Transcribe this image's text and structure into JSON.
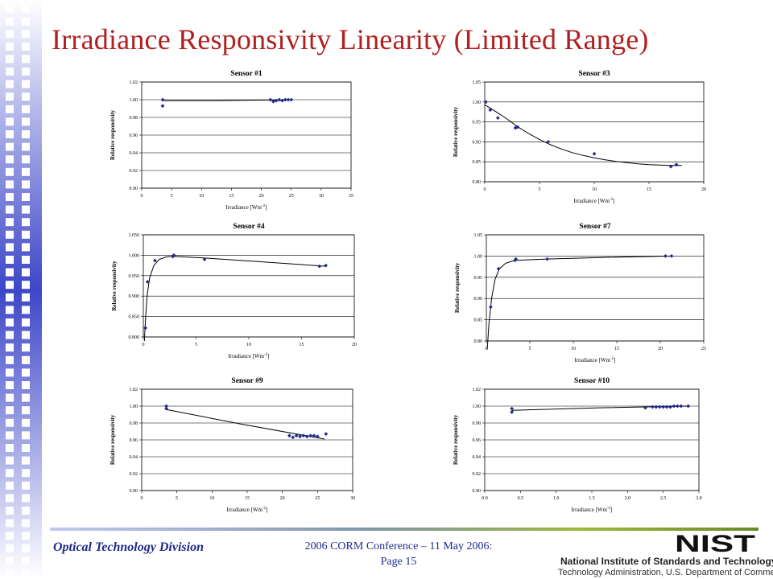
{
  "slide": {
    "title": "Irradiance Responsivity Linearity (Limited Range)"
  },
  "footer": {
    "division": "Optical Technology Division",
    "conference": "2006 CORM Conference – 11 May 2006:",
    "page": "Page 15",
    "org_name": "National Institute of Standards and Technology",
    "org_sub": "Technology Administration, U.S. Department of Commerce",
    "logo_text": "NIST"
  },
  "colors": {
    "title": "#b02020",
    "footer_text": "#1f2a8a",
    "sidebar_blue": "#3d46c8",
    "marker": "#1f2a8a"
  },
  "chart_data": [
    {
      "type": "scatter",
      "title": "Sensor #1",
      "xlabel": "Irradiance [Wm",
      "xlabel_sup": "-2",
      "xlabel_end": "]",
      "ylabel": "Relative responsivity",
      "xlim": [
        0,
        35
      ],
      "ylim": [
        0.9,
        1.02
      ],
      "xticks": [
        0,
        5,
        10,
        15,
        20,
        25,
        30,
        35
      ],
      "xtick_labels": [
        "0",
        "5",
        "10",
        "15",
        "20",
        "25",
        "30",
        "35"
      ],
      "yticks": [
        0.9,
        0.92,
        0.94,
        0.96,
        0.98,
        1.0,
        1.02
      ],
      "ytick_labels": [
        "0.90",
        "0.92",
        "0.94",
        "0.96",
        "0.98",
        "1.00",
        "1.02"
      ],
      "grid": true,
      "points": [
        [
          3.5,
          0.993
        ],
        [
          3.5,
          1.0
        ],
        [
          21.5,
          1.0
        ],
        [
          22.0,
          0.998
        ],
        [
          22.5,
          0.999
        ],
        [
          23.0,
          1.0
        ],
        [
          23.5,
          0.999
        ],
        [
          24.0,
          1.0
        ],
        [
          24.5,
          1.0
        ],
        [
          25.0,
          1.0
        ]
      ],
      "fit": [
        [
          3.5,
          0.999
        ],
        [
          13.0,
          0.999
        ],
        [
          25.0,
          1.0
        ]
      ]
    },
    {
      "type": "scatter",
      "title": "Sensor #3",
      "xlabel": "Irradiance [Wm",
      "xlabel_sup": "-2",
      "xlabel_end": "]",
      "ylabel": "Relative responsivity",
      "xlim": [
        0,
        20
      ],
      "ylim": [
        0.8,
        1.05
      ],
      "xticks": [
        0,
        5,
        10,
        15,
        20
      ],
      "xtick_labels": [
        "0",
        "5",
        "10",
        "15",
        "20"
      ],
      "yticks": [
        0.8,
        0.85,
        0.9,
        0.95,
        1.0,
        1.05
      ],
      "ytick_labels": [
        "0.80",
        "0.85",
        "0.90",
        "0.95",
        "1.00",
        "1.05"
      ],
      "grid": true,
      "points": [
        [
          0.1,
          1.0
        ],
        [
          0.5,
          0.98
        ],
        [
          1.2,
          0.96
        ],
        [
          2.8,
          0.935
        ],
        [
          3.0,
          0.937
        ],
        [
          5.8,
          0.9
        ],
        [
          10.0,
          0.87
        ],
        [
          17.0,
          0.838
        ],
        [
          17.5,
          0.843
        ]
      ],
      "fit": [
        [
          0,
          0.993
        ],
        [
          1,
          0.976
        ],
        [
          2,
          0.958
        ],
        [
          3,
          0.938
        ],
        [
          4,
          0.921
        ],
        [
          5,
          0.906
        ],
        [
          6,
          0.893
        ],
        [
          7,
          0.882
        ],
        [
          8,
          0.873
        ],
        [
          9,
          0.866
        ],
        [
          10,
          0.86
        ],
        [
          11,
          0.855
        ],
        [
          12,
          0.851
        ],
        [
          13,
          0.848
        ],
        [
          14,
          0.845
        ],
        [
          15,
          0.843
        ],
        [
          16,
          0.842
        ],
        [
          17,
          0.841
        ],
        [
          18,
          0.841
        ]
      ]
    },
    {
      "type": "scatter",
      "title": "Sensor #4",
      "xlabel": "Irradiance [Wm",
      "xlabel_sup": "-2",
      "xlabel_end": "]",
      "ylabel": "Relative responsivity",
      "xlim": [
        0,
        20
      ],
      "ylim": [
        0.8,
        1.05
      ],
      "xticks": [
        0,
        5,
        10,
        15,
        20
      ],
      "xtick_labels": [
        "0",
        "5",
        "10",
        "15",
        "20"
      ],
      "yticks": [
        0.8,
        0.85,
        0.9,
        0.95,
        1.0,
        1.05
      ],
      "ytick_labels": [
        "0.800",
        "0.850",
        "0.900",
        "0.950",
        "1.000",
        "1.050"
      ],
      "grid": true,
      "points": [
        [
          0.2,
          0.822
        ],
        [
          0.4,
          0.935
        ],
        [
          1.1,
          0.987
        ],
        [
          2.8,
          0.997
        ],
        [
          2.9,
          1.0
        ],
        [
          5.8,
          0.99
        ],
        [
          16.7,
          0.973
        ],
        [
          17.3,
          0.975
        ]
      ],
      "fit": [
        [
          0.1,
          0.79
        ],
        [
          0.2,
          0.84
        ],
        [
          0.35,
          0.9
        ],
        [
          0.6,
          0.945
        ],
        [
          1.0,
          0.975
        ],
        [
          1.5,
          0.99
        ],
        [
          2.2,
          0.996
        ],
        [
          3.0,
          0.997
        ],
        [
          6.0,
          0.993
        ],
        [
          10.0,
          0.986
        ],
        [
          17.3,
          0.973
        ]
      ]
    },
    {
      "type": "scatter",
      "title": "Sensor #7",
      "xlabel": "Irradiance [Wm",
      "xlabel_sup": "-2",
      "xlabel_end": "]",
      "ylabel": "Relative responsivity",
      "xlim": [
        0,
        25
      ],
      "ylim": [
        0.8,
        1.05
      ],
      "xticks": [
        0,
        5,
        10,
        15,
        20,
        25
      ],
      "xtick_labels": [
        "0",
        "5",
        "10",
        "15",
        "20",
        "25"
      ],
      "yticks": [
        0.8,
        0.85,
        0.9,
        0.95,
        1.0,
        1.05
      ],
      "ytick_labels": [
        "0.80",
        "0.85",
        "0.90",
        "0.95",
        "1.00",
        "1.05"
      ],
      "grid": true,
      "points": [
        [
          0.5,
          0.88
        ],
        [
          1.4,
          0.97
        ],
        [
          3.3,
          0.99
        ],
        [
          3.4,
          0.993
        ],
        [
          7.0,
          0.993
        ],
        [
          20.6,
          1.0
        ],
        [
          21.3,
          1.0
        ]
      ],
      "fit": [
        [
          0.1,
          0.78
        ],
        [
          0.3,
          0.84
        ],
        [
          0.6,
          0.9
        ],
        [
          1.0,
          0.945
        ],
        [
          1.5,
          0.97
        ],
        [
          2.2,
          0.983
        ],
        [
          3.3,
          0.99
        ],
        [
          7.0,
          0.993
        ],
        [
          14.0,
          0.997
        ],
        [
          21.3,
          1.0
        ]
      ]
    },
    {
      "type": "scatter",
      "title": "Sensor #9",
      "xlabel": "Irradiance [Wm",
      "xlabel_sup": "-2",
      "xlabel_end": "]",
      "ylabel": "Relative responsivity",
      "xlim": [
        0,
        30
      ],
      "ylim": [
        0.9,
        1.02
      ],
      "xticks": [
        0,
        5,
        10,
        15,
        20,
        25,
        30
      ],
      "xtick_labels": [
        "0",
        "5",
        "10",
        "15",
        "20",
        "25",
        "30"
      ],
      "yticks": [
        0.9,
        0.92,
        0.94,
        0.96,
        0.98,
        1.0,
        1.02
      ],
      "ytick_labels": [
        "0.90",
        "0.92",
        "0.94",
        "0.96",
        "0.98",
        "1.00",
        "1.02"
      ],
      "grid": true,
      "points": [
        [
          3.5,
          1.0
        ],
        [
          3.5,
          0.997
        ],
        [
          21.0,
          0.965
        ],
        [
          21.5,
          0.963
        ],
        [
          22.0,
          0.965
        ],
        [
          22.5,
          0.964
        ],
        [
          23.0,
          0.965
        ],
        [
          23.5,
          0.964
        ],
        [
          24.0,
          0.965
        ],
        [
          24.5,
          0.965
        ],
        [
          25.0,
          0.964
        ],
        [
          26.2,
          0.967
        ]
      ],
      "fit": [
        [
          3.5,
          0.996
        ],
        [
          14.0,
          0.979
        ],
        [
          26.0,
          0.961
        ]
      ]
    },
    {
      "type": "scatter",
      "title": "Sensor #10",
      "xlabel": "Irradiance [Wm",
      "xlabel_sup": "-2",
      "xlabel_end": "]",
      "ylabel": "Relative responsivity",
      "xlim": [
        0,
        3.0
      ],
      "ylim": [
        0.9,
        1.02
      ],
      "xticks": [
        0,
        0.5,
        1.0,
        1.5,
        2.0,
        2.5,
        3.0
      ],
      "xtick_labels": [
        "0.0",
        "0.5",
        "1.0",
        "1.5",
        "2.0",
        "2.5",
        "3.0"
      ],
      "yticks": [
        0.9,
        0.92,
        0.94,
        0.96,
        0.98,
        1.0,
        1.02
      ],
      "ytick_labels": [
        "0.90",
        "0.92",
        "0.94",
        "0.96",
        "0.98",
        "1.00",
        "1.02"
      ],
      "grid": true,
      "points": [
        [
          0.38,
          0.993
        ],
        [
          0.38,
          0.997
        ],
        [
          2.25,
          0.998
        ],
        [
          2.35,
          0.999
        ],
        [
          2.4,
          0.999
        ],
        [
          2.45,
          0.999
        ],
        [
          2.5,
          0.999
        ],
        [
          2.55,
          0.999
        ],
        [
          2.6,
          0.999
        ],
        [
          2.65,
          1.0
        ],
        [
          2.7,
          1.0
        ],
        [
          2.75,
          1.0
        ],
        [
          2.85,
          1.0
        ]
      ],
      "fit": [
        [
          0.38,
          0.995
        ],
        [
          1.6,
          0.998
        ],
        [
          2.85,
          1.0
        ]
      ]
    }
  ]
}
